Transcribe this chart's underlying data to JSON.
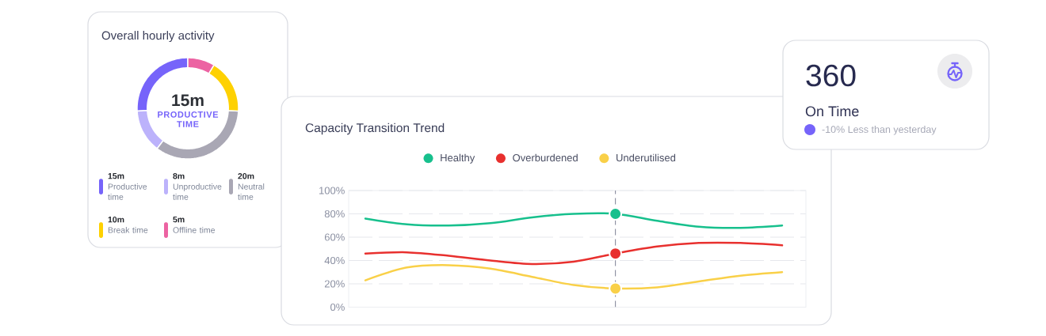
{
  "chart_data": [
    {
      "type": "donut",
      "title": "Overall hourly activity",
      "categories": [
        "Productive time",
        "Unproductive time",
        "Neutral time",
        "Break time",
        "Offline time"
      ],
      "values": [
        15,
        8,
        20,
        10,
        5
      ],
      "colors": [
        "#7664fa",
        "#bcb2fb",
        "#a9a7b4",
        "#fed102",
        "#ec63a2"
      ],
      "value_labels": [
        "15m",
        "8m",
        "20m",
        "10m",
        "5m"
      ],
      "legend": "bottom",
      "annotations": [
        "15m",
        "PRODUCTIVE TIME"
      ]
    },
    {
      "type": "line",
      "title": "Capacity Transition Trend",
      "categories": [
        null,
        null,
        null,
        null,
        null,
        null,
        null,
        null,
        null,
        null,
        null
      ],
      "series": [
        {
          "name": "Healthy",
          "color": "#17c08d",
          "values": [
            76,
            71,
            70,
            72,
            77,
            80,
            80,
            74,
            69,
            68,
            70
          ]
        },
        {
          "name": "Overburdened",
          "color": "#e8302e",
          "values": [
            46,
            47,
            44,
            40,
            37,
            39,
            46,
            52,
            55,
            55,
            53
          ]
        },
        {
          "name": "Underutilised",
          "color": "#f9d048",
          "values": [
            23,
            34,
            36,
            33,
            26,
            19,
            16,
            17,
            22,
            27,
            30
          ]
        },
        {
          "type": "scatter",
          "marker": "circle",
          "color": "#17c08d",
          "values": [
            null,
            null,
            null,
            null,
            null,
            null,
            80,
            null,
            null,
            null,
            null
          ]
        },
        {
          "type": "scatter",
          "marker": "circle",
          "color": "#e8302e",
          "values": [
            null,
            null,
            null,
            null,
            null,
            null,
            46,
            null,
            null,
            null,
            null
          ]
        },
        {
          "type": "scatter",
          "marker": "circle",
          "color": "#f9d048",
          "values": [
            null,
            null,
            null,
            null,
            null,
            null,
            16,
            null,
            null,
            null,
            null
          ]
        }
      ],
      "ylim": [
        0,
        100
      ],
      "yticks": [
        {
          "value": 0,
          "label": "0%"
        },
        {
          "value": 20,
          "label": "20%"
        },
        {
          "value": 40,
          "label": "40%"
        },
        {
          "value": 60,
          "label": "60%"
        },
        {
          "value": 80,
          "label": "80%"
        },
        {
          "value": 100,
          "label": "100%"
        }
      ],
      "grid": "y",
      "legend": "top"
    },
    {
      "type": "other",
      "annotations": [
        "360",
        "On Time",
        "-10% Less than yesterday"
      ]
    }
  ]
}
